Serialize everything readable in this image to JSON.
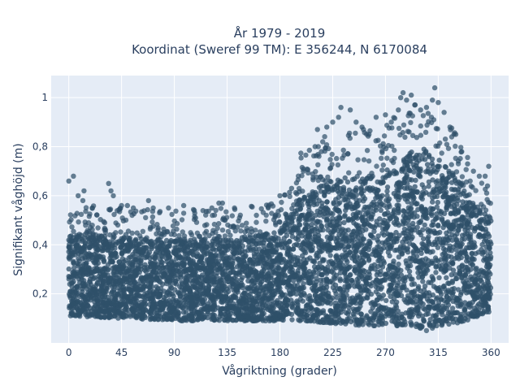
{
  "chart_data": {
    "type": "scatter",
    "title_line1": "År 1979 - 2019",
    "title_line2": "Koordinat (Sweref 99 TM): E 356244, N 6170084",
    "xlabel": "Vågriktning (grader)",
    "ylabel": "Signifikant våghöjd (m)",
    "xlim": [
      -15,
      375
    ],
    "ylim": [
      0,
      1.09
    ],
    "x_ticks": [
      0,
      45,
      90,
      135,
      180,
      225,
      270,
      315,
      360
    ],
    "x_tick_labels": [
      "0",
      "45",
      "90",
      "135",
      "180",
      "225",
      "270",
      "315",
      "360"
    ],
    "y_ticks": [
      0.2,
      0.4,
      0.6,
      0.8,
      1.0
    ],
    "y_tick_labels": [
      "0,2",
      "0,4",
      "0,6",
      "0,8",
      "1"
    ],
    "grid": true,
    "colors": {
      "plot_bg": "#e5ecf6",
      "grid": "#ffffff",
      "marker": "#2f5069",
      "text": "#2a3f5f"
    },
    "envelope": {
      "x": [
        0,
        45,
        90,
        135,
        160,
        180,
        200,
        225,
        250,
        270,
        290,
        300,
        315,
        330,
        345,
        360
      ],
      "y_min": [
        0.11,
        0.1,
        0.09,
        0.09,
        0.09,
        0.09,
        0.09,
        0.08,
        0.07,
        0.07,
        0.07,
        0.06,
        0.07,
        0.08,
        0.1,
        0.12
      ],
      "y_max": [
        0.45,
        0.43,
        0.42,
        0.43,
        0.44,
        0.46,
        0.6,
        0.67,
        0.68,
        0.7,
        0.78,
        0.8,
        0.75,
        0.68,
        0.58,
        0.5
      ]
    },
    "outliers": [
      {
        "x": 0,
        "y": 0.66
      },
      {
        "x": 4,
        "y": 0.68
      },
      {
        "x": 8,
        "y": 0.6
      },
      {
        "x": 12,
        "y": 0.58
      },
      {
        "x": 13,
        "y": 0.62
      },
      {
        "x": 20,
        "y": 0.55
      },
      {
        "x": 34,
        "y": 0.65
      },
      {
        "x": 36,
        "y": 0.62
      },
      {
        "x": 38,
        "y": 0.6
      },
      {
        "x": 45,
        "y": 0.56
      },
      {
        "x": 50,
        "y": 0.56
      },
      {
        "x": 55,
        "y": 0.55
      },
      {
        "x": 68,
        "y": 0.58
      },
      {
        "x": 72,
        "y": 0.55
      },
      {
        "x": 85,
        "y": 0.55
      },
      {
        "x": 98,
        "y": 0.56
      },
      {
        "x": 107,
        "y": 0.54
      },
      {
        "x": 122,
        "y": 0.55
      },
      {
        "x": 128,
        "y": 0.57
      },
      {
        "x": 131,
        "y": 0.57
      },
      {
        "x": 160,
        "y": 0.52
      },
      {
        "x": 170,
        "y": 0.55
      },
      {
        "x": 180,
        "y": 0.6
      },
      {
        "x": 190,
        "y": 0.63
      },
      {
        "x": 200,
        "y": 0.7
      },
      {
        "x": 210,
        "y": 0.8
      },
      {
        "x": 212,
        "y": 0.87
      },
      {
        "x": 220,
        "y": 0.88
      },
      {
        "x": 225,
        "y": 0.9
      },
      {
        "x": 230,
        "y": 0.92
      },
      {
        "x": 232,
        "y": 0.96
      },
      {
        "x": 240,
        "y": 0.95
      },
      {
        "x": 245,
        "y": 0.9
      },
      {
        "x": 250,
        "y": 0.88
      },
      {
        "x": 256,
        "y": 0.85
      },
      {
        "x": 262,
        "y": 0.92
      },
      {
        "x": 270,
        "y": 0.93
      },
      {
        "x": 275,
        "y": 0.9
      },
      {
        "x": 281,
        "y": 0.95
      },
      {
        "x": 283,
        "y": 1.0
      },
      {
        "x": 285,
        "y": 1.02
      },
      {
        "x": 288,
        "y": 0.99
      },
      {
        "x": 292,
        "y": 1.01
      },
      {
        "x": 295,
        "y": 0.97
      },
      {
        "x": 300,
        "y": 0.95
      },
      {
        "x": 305,
        "y": 0.96
      },
      {
        "x": 310,
        "y": 0.99
      },
      {
        "x": 312,
        "y": 1.04
      },
      {
        "x": 315,
        "y": 0.98
      },
      {
        "x": 320,
        "y": 0.94
      },
      {
        "x": 325,
        "y": 0.88
      },
      {
        "x": 330,
        "y": 0.85
      },
      {
        "x": 335,
        "y": 0.78
      },
      {
        "x": 340,
        "y": 0.73
      },
      {
        "x": 345,
        "y": 0.7
      },
      {
        "x": 350,
        "y": 0.68
      },
      {
        "x": 355,
        "y": 0.68
      },
      {
        "x": 358,
        "y": 0.72
      },
      {
        "x": 357,
        "y": 0.64
      },
      {
        "x": 300,
        "y": 0.06
      },
      {
        "x": 305,
        "y": 0.05
      },
      {
        "x": 310,
        "y": 0.06
      },
      {
        "x": 280,
        "y": 0.07
      },
      {
        "x": 260,
        "y": 0.07
      }
    ]
  }
}
